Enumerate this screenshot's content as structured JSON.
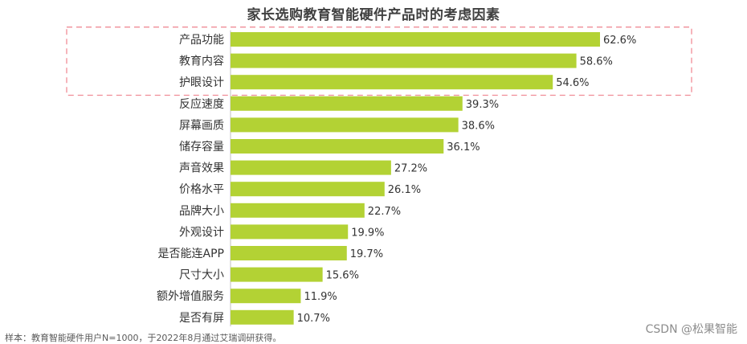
{
  "colors": {
    "bar": "#b3d234",
    "highlight_box": "#f08c96",
    "axis": "#bfbfbf",
    "text": "#333333"
  },
  "source_note": "样本：教育智能硬件用户N=1000，于2022年8月通过艾瑞调研获得。",
  "watermark": "CSDN @松果智能",
  "chart_data": {
    "type": "bar",
    "orientation": "horizontal",
    "title": "家长选购教育智能硬件产品时的考虑因素",
    "xlabel": "",
    "ylabel": "",
    "xlim": [
      0,
      70
    ],
    "grid": false,
    "categories": [
      "产品功能",
      "教育内容",
      "护眼设计",
      "反应速度",
      "屏幕画质",
      "储存容量",
      "声音效果",
      "价格水平",
      "品牌大小",
      "外观设计",
      "是否能连APP",
      "尺寸大小",
      "额外增值服务",
      "是否有屏"
    ],
    "values": [
      62.6,
      58.6,
      54.6,
      39.3,
      38.6,
      36.1,
      27.2,
      26.1,
      22.7,
      19.9,
      19.7,
      15.6,
      11.9,
      10.7
    ],
    "value_labels": [
      "62.6%",
      "58.6%",
      "54.6%",
      "39.3%",
      "38.6%",
      "36.1%",
      "27.2%",
      "26.1%",
      "22.7%",
      "19.9%",
      "19.7%",
      "15.6%",
      "11.9%",
      "10.7%"
    ],
    "highlighted_categories": [
      "产品功能",
      "教育内容",
      "护眼设计"
    ]
  }
}
